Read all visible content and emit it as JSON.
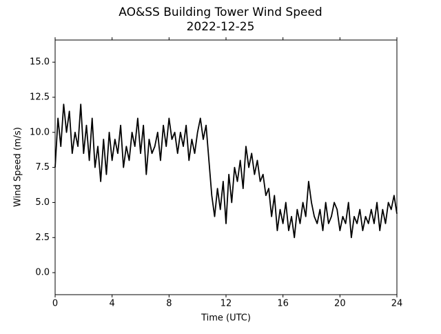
{
  "chart_data": {
    "type": "line",
    "title": "AO&SS Building Tower Wind Speed",
    "subtitle": "2022-12-25",
    "x_label": "Time (UTC)",
    "y_label": "Wind Speed (m/s)",
    "color": "#000000",
    "x": [
      0,
      0.2,
      0.4,
      0.6,
      0.8,
      1,
      1.2,
      1.4,
      1.6,
      1.8,
      2,
      2.2,
      2.4,
      2.6,
      2.8,
      3,
      3.2,
      3.4,
      3.6,
      3.8,
      4,
      4.2,
      4.4,
      4.6,
      4.8,
      5,
      5.2,
      5.4,
      5.6,
      5.8,
      6,
      6.2,
      6.4,
      6.6,
      6.8,
      7,
      7.2,
      7.4,
      7.6,
      7.8,
      8,
      8.2,
      8.4,
      8.6,
      8.8,
      9,
      9.2,
      9.4,
      9.6,
      9.8,
      10,
      10.2,
      10.4,
      10.6,
      10.8,
      11,
      11.2,
      11.4,
      11.6,
      11.8,
      12,
      12.2,
      12.4,
      12.6,
      12.8,
      13,
      13.2,
      13.4,
      13.6,
      13.8,
      14,
      14.2,
      14.4,
      14.6,
      14.8,
      15,
      15.2,
      15.4,
      15.6,
      15.8,
      16,
      16.2,
      16.4,
      16.6,
      16.8,
      17,
      17.2,
      17.4,
      17.6,
      17.8,
      18,
      18.2,
      18.4,
      18.6,
      18.8,
      19,
      19.2,
      19.4,
      19.6,
      19.8,
      20,
      20.2,
      20.4,
      20.6,
      20.8,
      21,
      21.2,
      21.4,
      21.6,
      21.8,
      22,
      22.2,
      22.4,
      22.6,
      22.8,
      23,
      23.2,
      23.4,
      23.6,
      23.8,
      24
    ],
    "values": [
      7.5,
      11,
      9,
      12,
      10,
      11.5,
      8.5,
      10,
      9,
      12,
      8.5,
      10.5,
      8,
      11,
      7.5,
      9,
      6.5,
      9.5,
      7,
      10,
      8,
      9.5,
      8.5,
      10.5,
      7.5,
      9,
      8,
      10,
      9,
      11,
      8.5,
      10.5,
      7,
      9.5,
      8.5,
      9,
      10,
      8,
      10.5,
      9,
      11,
      9.5,
      10,
      8.5,
      10,
      9,
      10.5,
      8,
      9.5,
      8.5,
      10,
      11,
      9.5,
      10.5,
      8,
      5.5,
      4,
      6,
      4.5,
      6.5,
      3.5,
      7,
      5,
      7.5,
      6.5,
      8,
      6,
      9,
      7.5,
      8.5,
      7,
      8,
      6.5,
      7,
      5.5,
      6,
      4,
      5.5,
      3,
      4.5,
      3.5,
      5,
      3,
      4,
      2.5,
      4.5,
      3.5,
      5,
      4,
      6.5,
      5,
      4,
      3.5,
      4.5,
      3,
      5,
      3.5,
      4,
      5,
      4.5,
      3,
      4,
      3.5,
      5,
      2.5,
      4,
      3.5,
      4.5,
      3,
      4,
      3.5,
      4.5,
      3.5,
      5,
      3,
      4.5,
      3.5,
      5,
      4.5,
      5.5,
      4.2
    ],
    "xlim": [
      0,
      24
    ],
    "ylim": [
      -1.57,
      16.58
    ],
    "xticks": [
      0,
      4,
      8,
      12,
      16,
      20,
      24
    ],
    "yticks": [
      {
        "value": 0,
        "label": "0.0"
      },
      {
        "value": 2.5,
        "label": "2.5"
      },
      {
        "value": 5,
        "label": "5.0"
      },
      {
        "value": 7.5,
        "label": "7.5"
      },
      {
        "value": 10,
        "label": "10.0"
      },
      {
        "value": 12.5,
        "label": "12.5"
      },
      {
        "value": 15,
        "label": "15.0"
      }
    ]
  }
}
